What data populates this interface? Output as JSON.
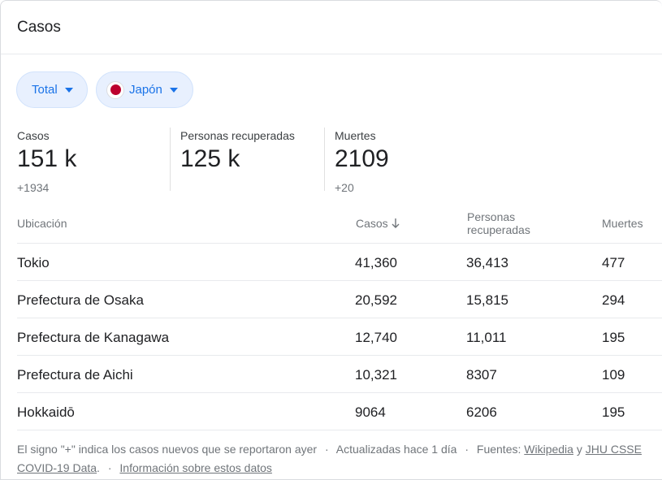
{
  "header": {
    "title": "Casos"
  },
  "filters": {
    "metric": {
      "label": "Total"
    },
    "country": {
      "label": "Japón",
      "flag": "japan-flag"
    }
  },
  "stats": {
    "cases": {
      "label": "Casos",
      "value": "151 k",
      "delta": "+1934"
    },
    "recovered": {
      "label": "Personas recuperadas",
      "value": "125 k"
    },
    "deaths": {
      "label": "Muertes",
      "value": "2109",
      "delta": "+20"
    }
  },
  "table": {
    "columns": {
      "location": "Ubicación",
      "cases": "Casos",
      "recovered": "Personas recuperadas",
      "deaths": "Muertes"
    },
    "rows": [
      {
        "location": "Tokio",
        "cases": "41,360",
        "recovered": "36,413",
        "deaths": "477"
      },
      {
        "location": "Prefectura de Osaka",
        "cases": "20,592",
        "recovered": "15,815",
        "deaths": "294"
      },
      {
        "location": "Prefectura de Kanagawa",
        "cases": "12,740",
        "recovered": "11,011",
        "deaths": "195"
      },
      {
        "location": "Prefectura de Aichi",
        "cases": "10,321",
        "recovered": "8307",
        "deaths": "109"
      },
      {
        "location": "Hokkaidō",
        "cases": "9064",
        "recovered": "6206",
        "deaths": "195"
      }
    ]
  },
  "footer": {
    "note": "El signo \"+\" indica los casos nuevos que se reportaron ayer",
    "sep": "·",
    "updated": "Actualizadas hace 1 día",
    "sources_label": "Fuentes:",
    "source1": "Wikipedia",
    "and": "y",
    "source2": "JHU CSSE COVID-19 Data",
    "period": ".",
    "info_link": "Información sobre estos datos"
  },
  "colors": {
    "accent": "#1a73e8",
    "chip_bg": "#e8f0fe",
    "flag_red": "#bc002d"
  }
}
